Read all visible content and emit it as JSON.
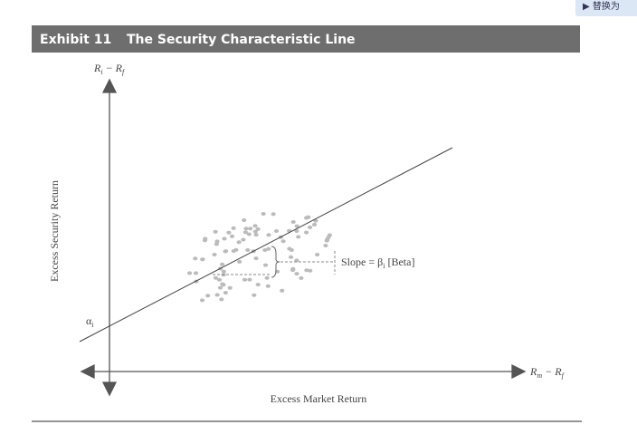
{
  "button": {
    "label": "▶ 替换为"
  },
  "header": {
    "exhibit": "Exhibit 11",
    "title": "The Security Characteristic Line"
  },
  "diagram": {
    "y_axis": {
      "symbol": [
        "R",
        "i",
        " − R",
        "f"
      ],
      "label": "Excess Security Return"
    },
    "x_axis": {
      "symbol": [
        "R",
        "m",
        " − R",
        "f"
      ],
      "label": "Excess Market Return"
    },
    "intercept": [
      "α",
      "i"
    ],
    "slope": [
      "Slope = β",
      "i",
      " [Beta]"
    ]
  }
}
